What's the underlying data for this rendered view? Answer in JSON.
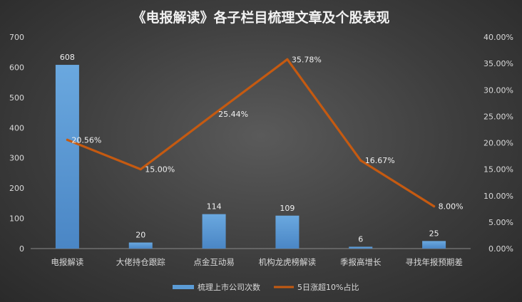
{
  "chart_data": {
    "type": "bar",
    "title": "《电报解读》各子栏目梳理文章及个股表现",
    "categories": [
      "电报解读",
      "大佬持仓跟踪",
      "点金互动易",
      "机构龙虎榜解读",
      "季报高增长",
      "寻找年报预期差"
    ],
    "series": [
      {
        "name": "梳理上市公司次数",
        "type": "bar",
        "axis": "left",
        "values": [
          608,
          20,
          114,
          109,
          6,
          25
        ],
        "labels": [
          "608",
          "20",
          "114",
          "109",
          "6",
          "25"
        ],
        "color": "#5b9bd5"
      },
      {
        "name": "5日涨超10%占比",
        "type": "line",
        "axis": "right",
        "values": [
          20.56,
          15.0,
          25.44,
          35.78,
          16.67,
          8.0
        ],
        "labels": [
          "20.56%",
          "15.00%",
          "25.44%",
          "35.78%",
          "16.67%",
          "8.00%"
        ],
        "color": "#c55a11"
      }
    ],
    "y_left": {
      "min": 0,
      "max": 700,
      "ticks": [
        "0",
        "100",
        "200",
        "300",
        "400",
        "500",
        "600",
        "700"
      ]
    },
    "y_right": {
      "min": 0,
      "max": 40,
      "ticks": [
        "0.00%",
        "5.00%",
        "10.00%",
        "15.00%",
        "20.00%",
        "25.00%",
        "30.00%",
        "35.00%",
        "40.00%"
      ]
    },
    "grid": false,
    "legend_position": "bottom"
  }
}
